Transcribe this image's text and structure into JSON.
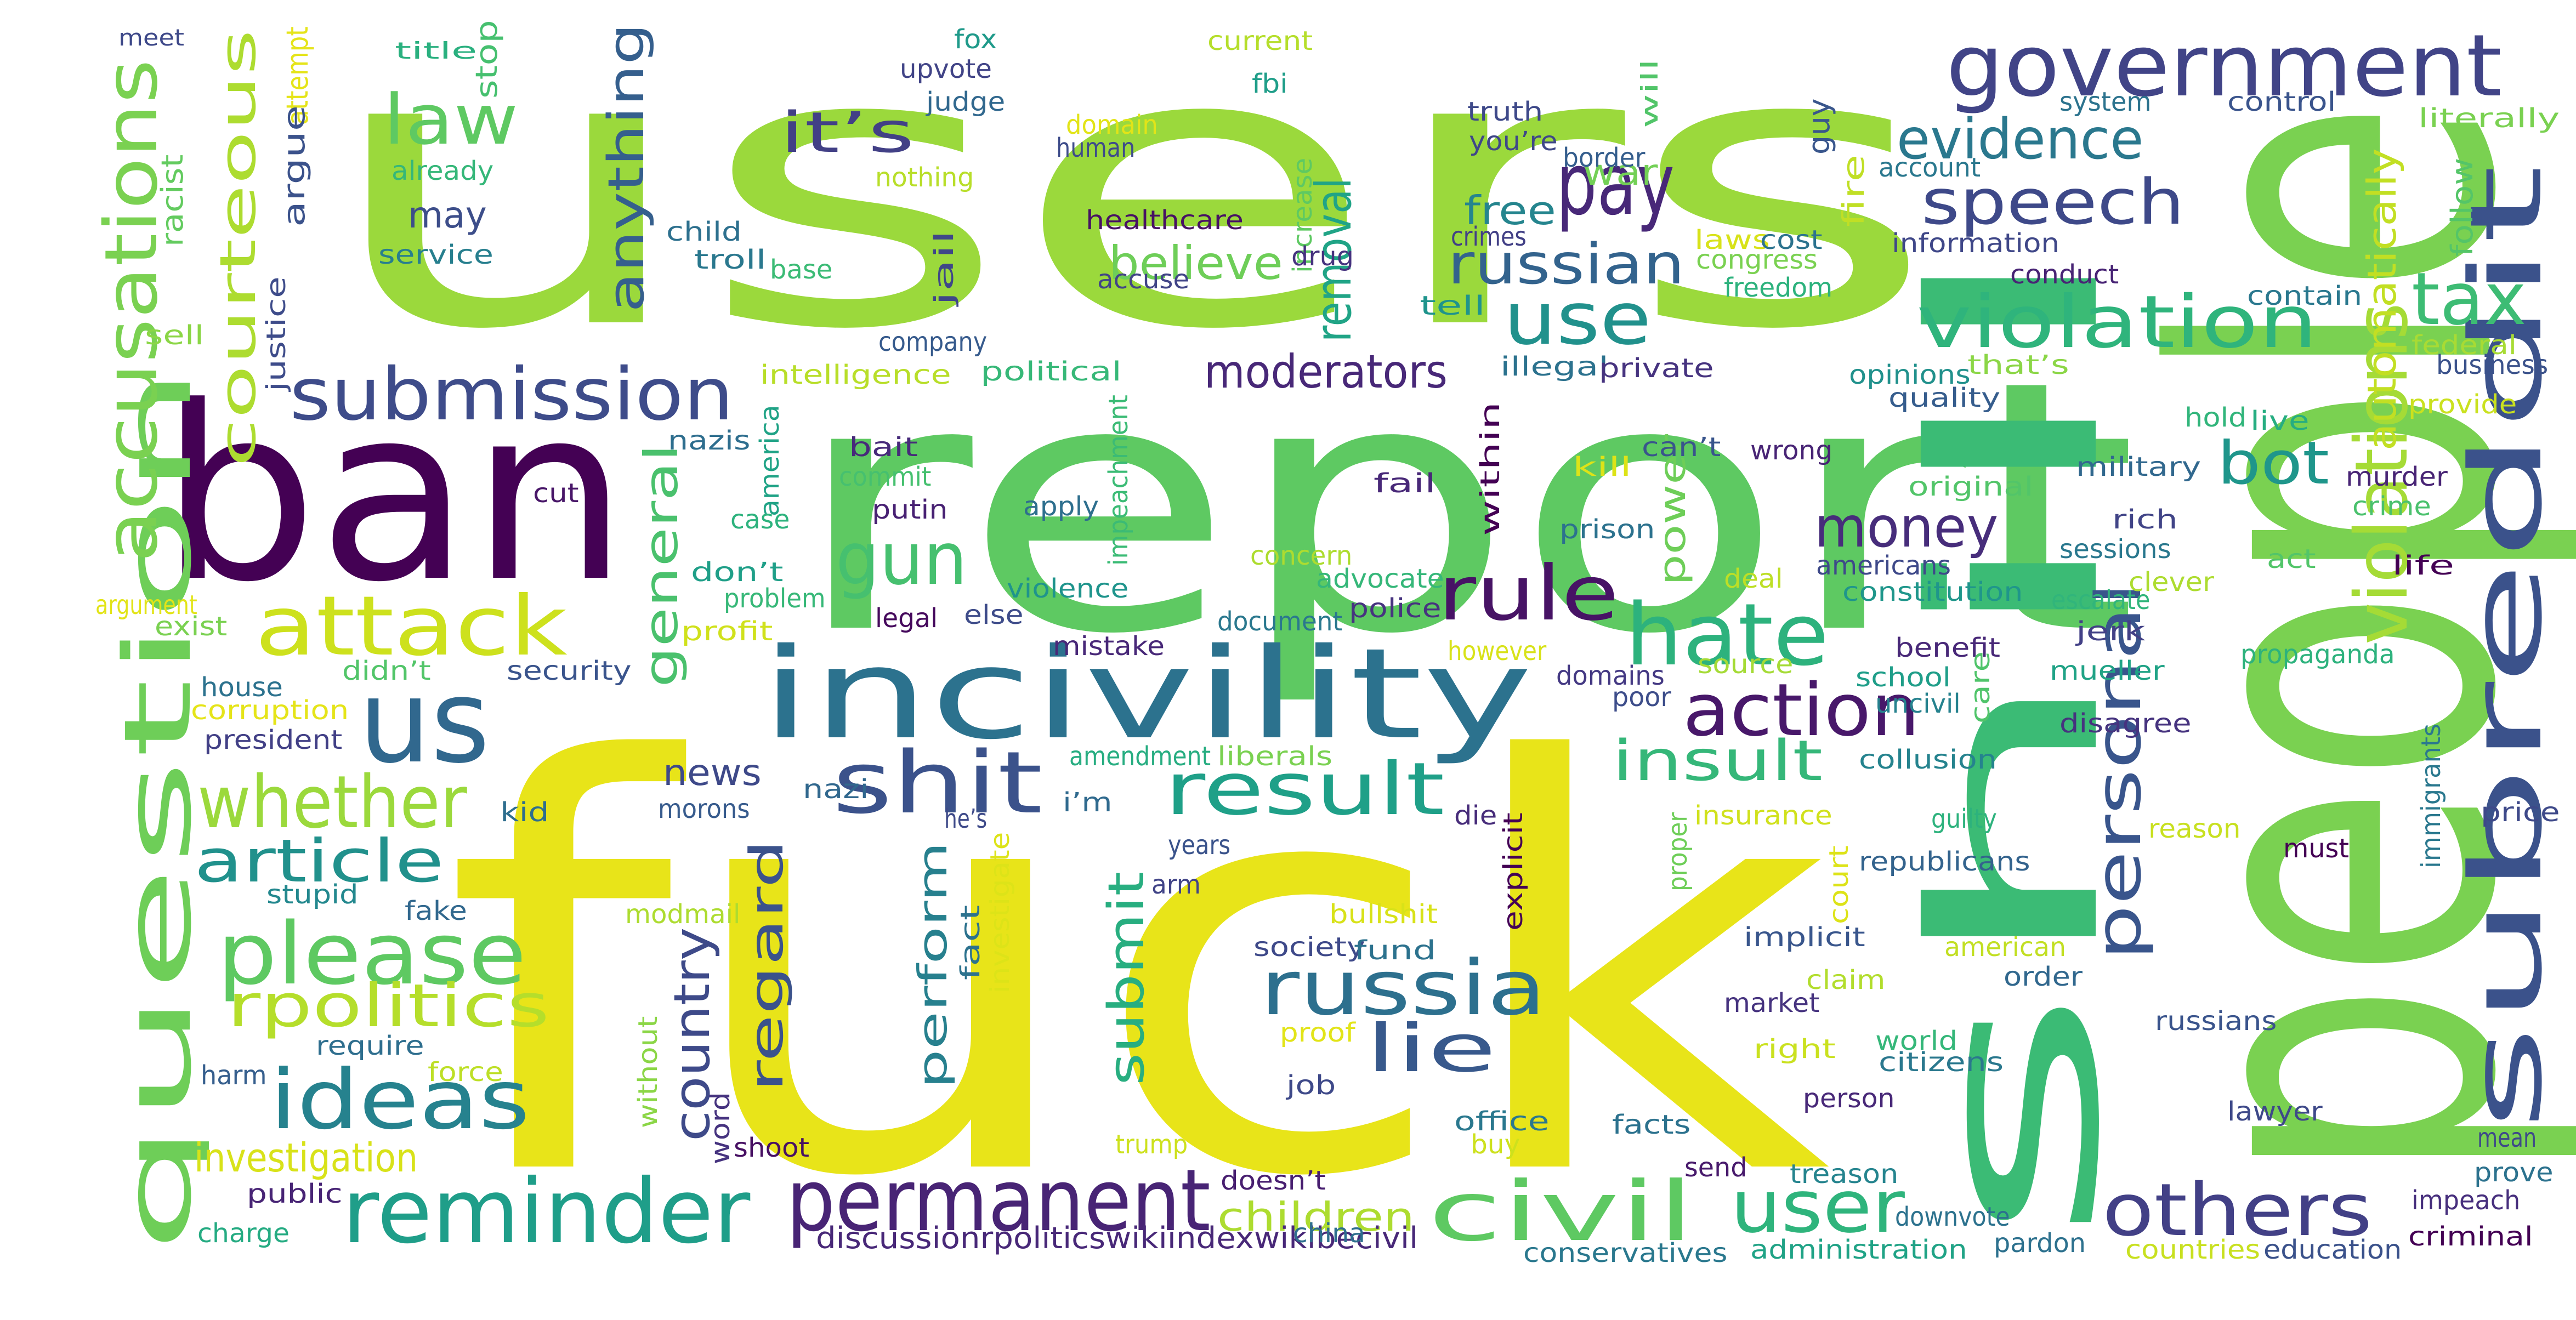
{
  "words": [
    {
      "text": "users",
      "color": "#9bd93c"
    },
    {
      "text": "fuck",
      "color": "#e8e419"
    },
    {
      "text": "ban",
      "color": "#440154"
    },
    {
      "text": "report",
      "color": "#5ec962"
    },
    {
      "text": "people",
      "color": "#7ad151"
    },
    {
      "text": "shill",
      "color": "#3bbb75"
    },
    {
      "text": "incivility",
      "color": "#2c728e"
    },
    {
      "text": "subreddit",
      "color": "#3b528b"
    },
    {
      "text": "government",
      "color": "#414487"
    },
    {
      "text": "question",
      "color": "#6ece58"
    },
    {
      "text": "us",
      "color": "#31688e"
    },
    {
      "text": "accusations",
      "color": "#7ad151"
    },
    {
      "text": "courteous",
      "color": "#addc30"
    },
    {
      "text": "law",
      "color": "#5ec962"
    },
    {
      "text": "pay",
      "color": "#482878"
    },
    {
      "text": "speech",
      "color": "#3e4989"
    },
    {
      "text": "violation",
      "color": "#2fb47c"
    },
    {
      "text": "evidence",
      "color": "#2a788e"
    },
    {
      "text": "tax",
      "color": "#3dbc74"
    },
    {
      "text": "use",
      "color": "#21918c"
    },
    {
      "text": "it’s",
      "color": "#424086"
    },
    {
      "text": "anything",
      "color": "#355f8d"
    },
    {
      "text": "submission",
      "color": "#3e4c8a"
    },
    {
      "text": "attack",
      "color": "#cde11d"
    },
    {
      "text": "gun",
      "color": "#46c06f"
    },
    {
      "text": "rule",
      "color": "#471365"
    },
    {
      "text": "hate",
      "color": "#2db27d"
    },
    {
      "text": "russian",
      "color": "#33638d"
    },
    {
      "text": "removal",
      "color": "#20a486"
    },
    {
      "text": "action",
      "color": "#48186a"
    },
    {
      "text": "personal",
      "color": "#39558c"
    },
    {
      "text": "violations",
      "color": "#a5db36"
    },
    {
      "text": "automatically",
      "color": "#c2df23"
    },
    {
      "text": "bot",
      "color": "#1f968b"
    },
    {
      "text": "money",
      "color": "#472d7b"
    },
    {
      "text": "whether",
      "color": "#9bd93c"
    },
    {
      "text": "please",
      "color": "#5ec962"
    },
    {
      "text": "ideas",
      "color": "#26828e"
    },
    {
      "text": "shit",
      "color": "#3b528b"
    },
    {
      "text": "result",
      "color": "#1fa088"
    },
    {
      "text": "insult",
      "color": "#35b779"
    },
    {
      "text": "article",
      "color": "#21918c"
    },
    {
      "text": "rpolitics",
      "color": "#b5de2b"
    },
    {
      "text": "reminder",
      "color": "#1f9e89"
    },
    {
      "text": "permanent",
      "color": "#482475"
    },
    {
      "text": "civil",
      "color": "#5ec962"
    },
    {
      "text": "user",
      "color": "#2fb47c"
    },
    {
      "text": "others",
      "color": "#424086"
    },
    {
      "text": "russia",
      "color": "#2d708e"
    },
    {
      "text": "lie",
      "color": "#38598c"
    },
    {
      "text": "submit",
      "color": "#28ae80"
    },
    {
      "text": "regard",
      "color": "#3b528b"
    },
    {
      "text": "country",
      "color": "#3e4a89"
    },
    {
      "text": "perform",
      "color": "#27808e"
    },
    {
      "text": "general",
      "color": "#4ac16d"
    },
    {
      "text": "moderators",
      "color": "#482878"
    },
    {
      "text": "believe",
      "color": "#6ece58"
    },
    {
      "text": "free",
      "color": "#25858e"
    },
    {
      "text": "war",
      "color": "#73d056"
    },
    {
      "text": "may",
      "color": "#3d4e8a"
    },
    {
      "text": "power",
      "color": "#6ece58"
    },
    {
      "text": "investigation",
      "color": "#d8e219"
    },
    {
      "text": "children",
      "color": "#addc30"
    },
    {
      "text": "news",
      "color": "#3e4989"
    },
    {
      "text": "discussionrpoliticswikiindexwikibecivil",
      "color": "#482878"
    },
    {
      "text": "meet",
      "color": "#3e4989"
    },
    {
      "text": "title",
      "color": "#2ab07f"
    },
    {
      "text": "attempt",
      "color": "#e5e419"
    },
    {
      "text": "stop",
      "color": "#46c06f"
    },
    {
      "text": "racist",
      "color": "#63cb5f"
    },
    {
      "text": "argue",
      "color": "#3b528b"
    },
    {
      "text": "already",
      "color": "#35b779"
    },
    {
      "text": "service",
      "color": "#277f8e"
    },
    {
      "text": "child",
      "color": "#2d708e"
    },
    {
      "text": "troll",
      "color": "#2a788e"
    },
    {
      "text": "justice",
      "color": "#3e4c8a"
    },
    {
      "text": "sell",
      "color": "#8bd646"
    },
    {
      "text": "base",
      "color": "#3bbb75"
    },
    {
      "text": "fox",
      "color": "#1f9a8a"
    },
    {
      "text": "upvote",
      "color": "#414487"
    },
    {
      "text": "judge",
      "color": "#31688e"
    },
    {
      "text": "nothing",
      "color": "#b8de29"
    },
    {
      "text": "domain",
      "color": "#e2e418"
    },
    {
      "text": "human",
      "color": "#3e4c8a"
    },
    {
      "text": "current",
      "color": "#b5de2b"
    },
    {
      "text": "fbi",
      "color": "#1f9e89"
    },
    {
      "text": "healthcare",
      "color": "#471164"
    },
    {
      "text": "accuse",
      "color": "#414487"
    },
    {
      "text": "increase",
      "color": "#5ec962"
    },
    {
      "text": "truth",
      "color": "#3e4989"
    },
    {
      "text": "will",
      "color": "#52c569"
    },
    {
      "text": "you’re",
      "color": "#3f4788"
    },
    {
      "text": "border",
      "color": "#355e8d"
    },
    {
      "text": "crimes",
      "color": "#424086"
    },
    {
      "text": "laws",
      "color": "#d8e219"
    },
    {
      "text": "cost",
      "color": "#2c738e"
    },
    {
      "text": "congress",
      "color": "#7ad151"
    },
    {
      "text": "freedom",
      "color": "#2db27d"
    },
    {
      "text": "tell",
      "color": "#1f948c"
    },
    {
      "text": "drug",
      "color": "#46337f"
    },
    {
      "text": "guy",
      "color": "#39568c"
    },
    {
      "text": "fire",
      "color": "#c0df25"
    },
    {
      "text": "account",
      "color": "#2a788e"
    },
    {
      "text": "system",
      "color": "#2c738e"
    },
    {
      "text": "control",
      "color": "#3a548c"
    },
    {
      "text": "literally",
      "color": "#7ad151"
    },
    {
      "text": "follow",
      "color": "#54c568"
    },
    {
      "text": "information",
      "color": "#3f4788"
    },
    {
      "text": "conduct",
      "color": "#482475"
    },
    {
      "text": "contain",
      "color": "#2a788e"
    },
    {
      "text": "federal",
      "color": "#a8db34"
    },
    {
      "text": "business",
      "color": "#3b528b"
    },
    {
      "text": "provide",
      "color": "#cae11f"
    },
    {
      "text": "company",
      "color": "#375b8d"
    },
    {
      "text": "intelligence",
      "color": "#b8de29"
    },
    {
      "text": "political",
      "color": "#37b878"
    },
    {
      "text": "illegal",
      "color": "#2c728e"
    },
    {
      "text": "private",
      "color": "#46337f"
    },
    {
      "text": "opinions",
      "color": "#21918c"
    },
    {
      "text": "that’s",
      "color": "#8bd646"
    },
    {
      "text": "quality",
      "color": "#365d8d"
    },
    {
      "text": "hold",
      "color": "#31b57b"
    },
    {
      "text": "live",
      "color": "#26ad81"
    },
    {
      "text": "jail",
      "color": "#3f4788"
    },
    {
      "text": "america",
      "color": "#20a386"
    },
    {
      "text": "impeachment",
      "color": "#3bbb75"
    },
    {
      "text": "within",
      "color": "#440154"
    },
    {
      "text": "bait",
      "color": "#472a7a"
    },
    {
      "text": "commit",
      "color": "#46c06f"
    },
    {
      "text": "putin",
      "color": "#482173"
    },
    {
      "text": "apply",
      "color": "#2e6f8e"
    },
    {
      "text": "fail",
      "color": "#482878"
    },
    {
      "text": "kill",
      "color": "#dde318"
    },
    {
      "text": "can’t",
      "color": "#39558c"
    },
    {
      "text": "wrong",
      "color": "#482475"
    },
    {
      "text": "original",
      "color": "#52c569"
    },
    {
      "text": "military",
      "color": "#31688e"
    },
    {
      "text": "murder",
      "color": "#482475"
    },
    {
      "text": "rich",
      "color": "#414487"
    },
    {
      "text": "crime",
      "color": "#4ac16d"
    },
    {
      "text": "sessions",
      "color": "#2a788e"
    },
    {
      "text": "nazis",
      "color": "#2e6e8e"
    },
    {
      "text": "case",
      "color": "#2db27d"
    },
    {
      "text": "cut",
      "color": "#481668"
    },
    {
      "text": "don’t",
      "color": "#1f9f88"
    },
    {
      "text": "problem",
      "color": "#37b878"
    },
    {
      "text": "violence",
      "color": "#1f948c"
    },
    {
      "text": "concern",
      "color": "#addc30"
    },
    {
      "text": "advocate",
      "color": "#35b779"
    },
    {
      "text": "prison",
      "color": "#2c728e"
    },
    {
      "text": "deal",
      "color": "#bddf26"
    },
    {
      "text": "americans",
      "color": "#3e4989"
    },
    {
      "text": "constitution",
      "color": "#1f968b"
    },
    {
      "text": "escalate",
      "color": "#31b57b"
    },
    {
      "text": "clever",
      "color": "#addc30"
    },
    {
      "text": "act",
      "color": "#52c569"
    },
    {
      "text": "life",
      "color": "#440154"
    },
    {
      "text": "argument",
      "color": "#e2e418"
    },
    {
      "text": "exist",
      "color": "#7ad151"
    },
    {
      "text": "profit",
      "color": "#d0e11c"
    },
    {
      "text": "legal",
      "color": "#460a5d"
    },
    {
      "text": "else",
      "color": "#3e4c8a"
    },
    {
      "text": "mistake",
      "color": "#482878"
    },
    {
      "text": "document",
      "color": "#2a788e"
    },
    {
      "text": "police",
      "color": "#46337f"
    },
    {
      "text": "jerk",
      "color": "#424086"
    },
    {
      "text": "benefit",
      "color": "#482878"
    },
    {
      "text": "house",
      "color": "#2c728e"
    },
    {
      "text": "didn’t",
      "color": "#52c569"
    },
    {
      "text": "security",
      "color": "#3a548c"
    },
    {
      "text": "however",
      "color": "#d8e219"
    },
    {
      "text": "source",
      "color": "#a5db36"
    },
    {
      "text": "mueller",
      "color": "#20a386"
    },
    {
      "text": "propaganda",
      "color": "#2db27d"
    },
    {
      "text": "corruption",
      "color": "#e5e419"
    },
    {
      "text": "domains",
      "color": "#443983"
    },
    {
      "text": "school",
      "color": "#1f9e89"
    },
    {
      "text": "poor",
      "color": "#3d4d8a"
    },
    {
      "text": "care",
      "color": "#50c46a"
    },
    {
      "text": "uncivil",
      "color": "#26828e"
    },
    {
      "text": "disagree",
      "color": "#46337f"
    },
    {
      "text": "president",
      "color": "#424086"
    },
    {
      "text": "amendment",
      "color": "#27ad81"
    },
    {
      "text": "liberals",
      "color": "#7ad151"
    },
    {
      "text": "collusion",
      "color": "#25838e"
    },
    {
      "text": "immigrants",
      "color": "#2a788e"
    },
    {
      "text": "kid",
      "color": "#2e6e8e"
    },
    {
      "text": "morons",
      "color": "#375b8d"
    },
    {
      "text": "nazi",
      "color": "#31688e"
    },
    {
      "text": "i’m",
      "color": "#306a8e"
    },
    {
      "text": "he’s",
      "color": "#3e4a89"
    },
    {
      "text": "insurance",
      "color": "#d0e11c"
    },
    {
      "text": "guilty",
      "color": "#2db27d"
    },
    {
      "text": "reason",
      "color": "#c8e020"
    },
    {
      "text": "price",
      "color": "#3e4989"
    },
    {
      "text": "die",
      "color": "#472c7a"
    },
    {
      "text": "explicit",
      "color": "#440154"
    },
    {
      "text": "years",
      "color": "#3a538b"
    },
    {
      "text": "stupid",
      "color": "#23888e"
    },
    {
      "text": "arm",
      "color": "#414487"
    },
    {
      "text": "fake",
      "color": "#31688e"
    },
    {
      "text": "fact",
      "color": "#2c728e"
    },
    {
      "text": "investigate",
      "color": "#dde318"
    },
    {
      "text": "proper",
      "color": "#6ece58"
    },
    {
      "text": "court",
      "color": "#dde318"
    },
    {
      "text": "republicans",
      "color": "#33638d"
    },
    {
      "text": "must",
      "color": "#440154"
    },
    {
      "text": "modmail",
      "color": "#addc30"
    },
    {
      "text": "bullshit",
      "color": "#d8e219"
    },
    {
      "text": "society",
      "color": "#3e4989"
    },
    {
      "text": "fund",
      "color": "#2c728e"
    },
    {
      "text": "implicit",
      "color": "#39568c"
    },
    {
      "text": "american",
      "color": "#c2df23"
    },
    {
      "text": "claim",
      "color": "#b2dd2d"
    },
    {
      "text": "order",
      "color": "#31688e"
    },
    {
      "text": "require",
      "color": "#2e6e8e"
    },
    {
      "text": "market",
      "color": "#46337f"
    },
    {
      "text": "harm",
      "color": "#355e8d"
    },
    {
      "text": "force",
      "color": "#bddf26"
    },
    {
      "text": "without",
      "color": "#8bd646"
    },
    {
      "text": "proof",
      "color": "#e2e418"
    },
    {
      "text": "right",
      "color": "#cae11f"
    },
    {
      "text": "world",
      "color": "#35b779"
    },
    {
      "text": "citizens",
      "color": "#2a788e"
    },
    {
      "text": "russians",
      "color": "#3a548c"
    },
    {
      "text": "word",
      "color": "#46337f"
    },
    {
      "text": "job",
      "color": "#3e4989"
    },
    {
      "text": "person",
      "color": "#482878"
    },
    {
      "text": "lawyer",
      "color": "#3e4989"
    },
    {
      "text": "public",
      "color": "#482475"
    },
    {
      "text": "shoot",
      "color": "#471063"
    },
    {
      "text": "office",
      "color": "#2a788e"
    },
    {
      "text": "trump",
      "color": "#cde11d"
    },
    {
      "text": "buy",
      "color": "#cde11d"
    },
    {
      "text": "facts",
      "color": "#2c728e"
    },
    {
      "text": "send",
      "color": "#481a6c"
    },
    {
      "text": "treason",
      "color": "#25848e"
    },
    {
      "text": "mean",
      "color": "#3e4989"
    },
    {
      "text": "prove",
      "color": "#2c728e"
    },
    {
      "text": "impeach",
      "color": "#472f7d"
    },
    {
      "text": "charge",
      "color": "#25ab82"
    },
    {
      "text": "doesn’t",
      "color": "#481f70"
    },
    {
      "text": "china",
      "color": "#2e6f8e"
    },
    {
      "text": "downvote",
      "color": "#2c728e"
    },
    {
      "text": "pardon",
      "color": "#2d718e"
    },
    {
      "text": "criminal",
      "color": "#440154"
    },
    {
      "text": "conservatives",
      "color": "#2a788e"
    },
    {
      "text": "administration",
      "color": "#20a386"
    },
    {
      "text": "countries",
      "color": "#c8e020"
    },
    {
      "text": "education",
      "color": "#3b528b"
    }
  ]
}
